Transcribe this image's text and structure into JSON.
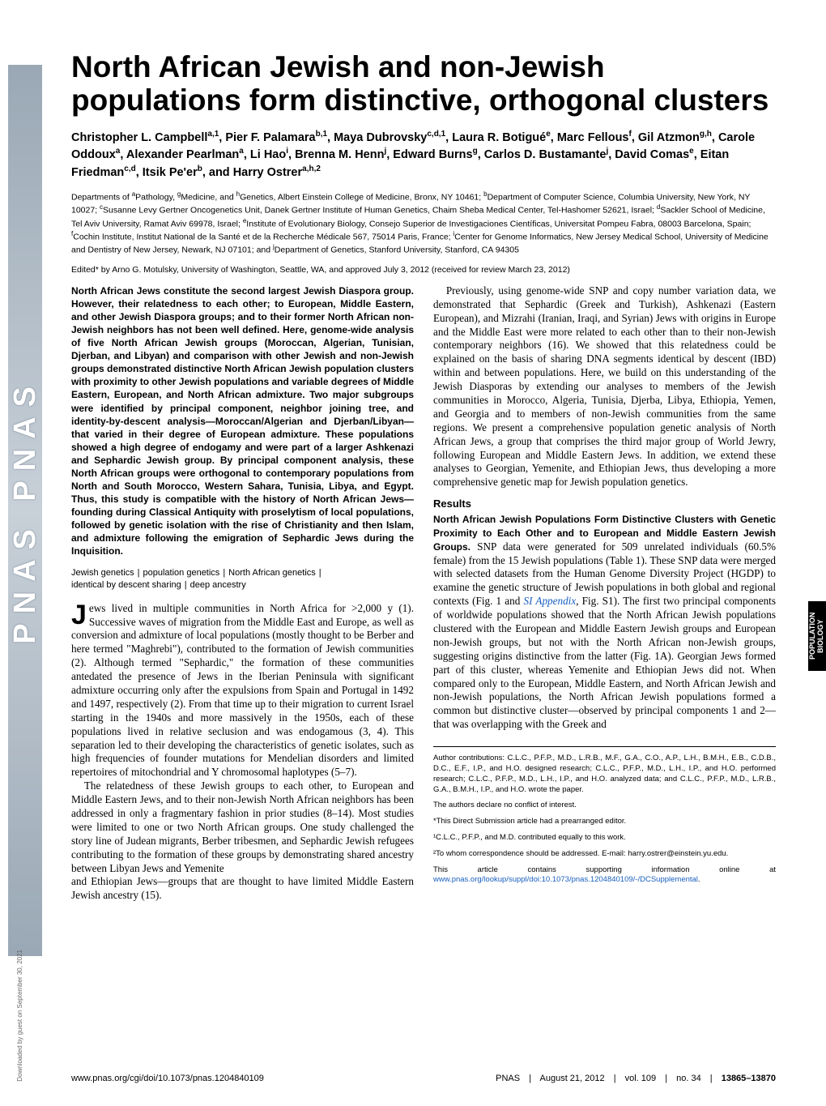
{
  "meta": {
    "journal_strip": "PNAS   PNAS",
    "download_note": "Downloaded by guest on September 30, 2021",
    "side_tab": "POPULATION\nBIOLOGY"
  },
  "title": "North African Jewish and non-Jewish populations form distinctive, orthogonal clusters",
  "authors_html": "Christopher L. Campbell<sup>a,1</sup>, Pier F. Palamara<sup>b,1</sup>, Maya Dubrovsky<sup>c,d,1</sup>, Laura R. Botigué<sup>e</sup>, Marc Fellous<sup>f</sup>, Gil Atzmon<sup>g,h</sup>, Carole Oddoux<sup>a</sup>, Alexander Pearlman<sup>a</sup>, Li Hao<sup>i</sup>, Brenna M. Henn<sup>j</sup>, Edward Burns<sup>g</sup>, Carlos D. Bustamante<sup>j</sup>, David Comas<sup>e</sup>, Eitan Friedman<sup>c,d</sup>, Itsik Pe'er<sup>b</sup>, and Harry Ostrer<sup>a,h,2</sup>",
  "affiliations_html": "Departments of <sup>a</sup>Pathology, <sup>g</sup>Medicine, and <sup>h</sup>Genetics, Albert Einstein College of Medicine, Bronx, NY 10461; <sup>b</sup>Department of Computer Science, Columbia University, New York, NY 10027; <sup>c</sup>Susanne Levy Gertner Oncogenetics Unit, Danek Gertner Institute of Human Genetics, Chaim Sheba Medical Center, Tel-Hashomer 52621, Israel; <sup>d</sup>Sackler School of Medicine, Tel Aviv University, Ramat Aviv 69978, Israel; <sup>e</sup>Institute of Evolutionary Biology, Consejo Superior de Investigaciones Científicas, Universitat Pompeu Fabra, 08003 Barcelona, Spain; <sup>f</sup>Cochin Institute, Institut National de la Santé et de la Recherche Médicale 567, 75014 Paris, France; <sup>i</sup>Center for Genome Informatics, New Jersey Medical School, University of Medicine and Dentistry of New Jersey, Newark, NJ 07101; and <sup>j</sup>Department of Genetics, Stanford University, Stanford, CA 94305",
  "edited": "Edited* by Arno G. Motulsky, University of Washington, Seattle, WA, and approved July 3, 2012 (received for review March 23, 2012)",
  "abstract": "North African Jews constitute the second largest Jewish Diaspora group. However, their relatedness to each other; to European, Middle Eastern, and other Jewish Diaspora groups; and to their former North African non-Jewish neighbors has not been well defined. Here, genome-wide analysis of five North African Jewish groups (Moroccan, Algerian, Tunisian, Djerban, and Libyan) and comparison with other Jewish and non-Jewish groups demonstrated distinctive North African Jewish population clusters with proximity to other Jewish populations and variable degrees of Middle Eastern, European, and North African admixture. Two major subgroups were identified by principal component, neighbor joining tree, and identity-by-descent analysis—Moroccan/Algerian and Djerban/Libyan—that varied in their degree of European admixture. These populations showed a high degree of endogamy and were part of a larger Ashkenazi and Sephardic Jewish group. By principal component analysis, these North African groups were orthogonal to contemporary populations from North and South Morocco, Western Sahara, Tunisia, Libya, and Egypt. Thus, this study is compatible with the history of North African Jews—founding during Classical Antiquity with proselytism of local populations, followed by genetic isolation with the rise of Christianity and then Islam, and admixture following the emigration of Sephardic Jews during the Inquisition.",
  "keywords": [
    "Jewish genetics",
    "population genetics",
    "North African genetics",
    "identical by descent sharing",
    "deep ancestry"
  ],
  "body": {
    "p1a": "ews lived in multiple communities in North Africa for >2,000 y (1). Successive waves of migration from the Middle East and Europe, as well as conversion and admixture of local populations (mostly thought to be Berber and here termed \"Maghrebi\"), contributed to the formation of Jewish communities (2). Although termed \"Sephardic,\" the formation of these communities antedated the presence of Jews in the Iberian Peninsula with significant admixture occurring only after the expulsions from Spain and Portugal in 1492 and 1497, respectively (2). From that time up to their migration to current Israel starting in the 1940s and more massively in the 1950s, each of these populations lived in relative seclusion and was endogamous (3, 4). This separation led to their developing the characteristics of genetic isolates, such as high frequencies of founder mutations for Mendelian disorders and limited repertoires of mitochondrial and Y chromosomal haplotypes (5–7).",
    "p2": "The relatedness of these Jewish groups to each other, to European and Middle Eastern Jews, and to their non-Jewish North African neighbors has been addressed in only a fragmentary fashion in prior studies (8–14). Most studies were limited to one or two North African groups. One study challenged the story line of Judean migrants, Berber tribesmen, and Sephardic Jewish refugees contributing to the formation of these groups by demonstrating shared ancestry between Libyan Jews and Yemenite",
    "p3": "and Ethiopian Jews—groups that are thought to have limited Middle Eastern Jewish ancestry (15).",
    "p4": "Previously, using genome-wide SNP and copy number variation data, we demonstrated that Sephardic (Greek and Turkish), Ashkenazi (Eastern European), and Mizrahi (Iranian, Iraqi, and Syrian) Jews with origins in Europe and the Middle East were more related to each other than to their non-Jewish contemporary neighbors (16). We showed that this relatedness could be explained on the basis of sharing DNA segments identical by descent (IBD) within and between populations. Here, we build on this understanding of the Jewish Diasporas by extending our analyses to members of the Jewish communities in Morocco, Algeria, Tunisia, Djerba, Libya, Ethiopia, Yemen, and Georgia and to members of non-Jewish communities from the same regions. We present a comprehensive population genetic analysis of North African Jews, a group that comprises the third major group of World Jewry, following European and Middle Eastern Jews. In addition, we extend these analyses to Georgian, Yemenite, and Ethiopian Jews, thus developing a more comprehensive genetic map for Jewish population genetics.",
    "results_head": "Results",
    "results_sub": "North African Jewish Populations Form Distinctive Clusters with Genetic Proximity to Each Other and to European and Middle Eastern Jewish Groups.",
    "results_p1": " SNP data were generated for 509 unrelated individuals (60.5% female) from the 15 Jewish populations (Table 1). These SNP data were merged with selected datasets from the Human Genome Diversity Project (HGDP) to examine the genetic structure of Jewish populations in both global and regional contexts (Fig. 1 and ",
    "si_link_text": "SI Appendix",
    "results_p1b": ", Fig. S1). The first two principal components of worldwide populations showed that the North African Jewish populations clustered with the European and Middle Eastern Jewish groups and European non-Jewish groups, but not with the North African non-Jewish groups, suggesting origins distinctive from the latter (Fig. 1A). Georgian Jews formed part of this cluster, whereas Yemenite and Ethiopian Jews did not. When compared only to the European, Middle Eastern, and North African Jewish and non-Jewish populations, the North African Jewish populations formed a common but distinctive cluster—observed by principal components 1 and 2—that was overlapping with the Greek and"
  },
  "notes": {
    "contrib": "Author contributions: C.L.C., P.F.P., M.D., L.R.B., M.F., G.A., C.O., A.P., L.H., B.M.H., E.B., C.D.B., D.C., E.F., I.P., and H.O. designed research; C.L.C., P.F.P., M.D., L.H., I.P., and H.O. performed research; C.L.C., P.F.P., M.D., L.H., I.P., and H.O. analyzed data; and C.L.C., P.F.P., M.D., L.R.B., G.A., B.M.H., I.P., and H.O. wrote the paper.",
    "conflict": "The authors declare no conflict of interest.",
    "editor": "*This Direct Submission article had a prearranged editor.",
    "equal": "¹C.L.C., P.F.P., and M.D. contributed equally to this work.",
    "corr": "²To whom correspondence should be addressed. E-mail: harry.ostrer@einstein.yu.edu.",
    "supp_a": "This article contains supporting information online at ",
    "supp_link": "www.pnas.org/lookup/suppl/doi:10.1073/pnas.1204840109/-/DCSupplemental",
    "supp_b": "."
  },
  "footer": {
    "left_url": "www.pnas.org/cgi/doi/10.1073/pnas.1204840109",
    "journal": "PNAS",
    "date": "August 21, 2012",
    "vol": "vol. 109",
    "no": "no. 34",
    "pages": "13865–13870"
  }
}
